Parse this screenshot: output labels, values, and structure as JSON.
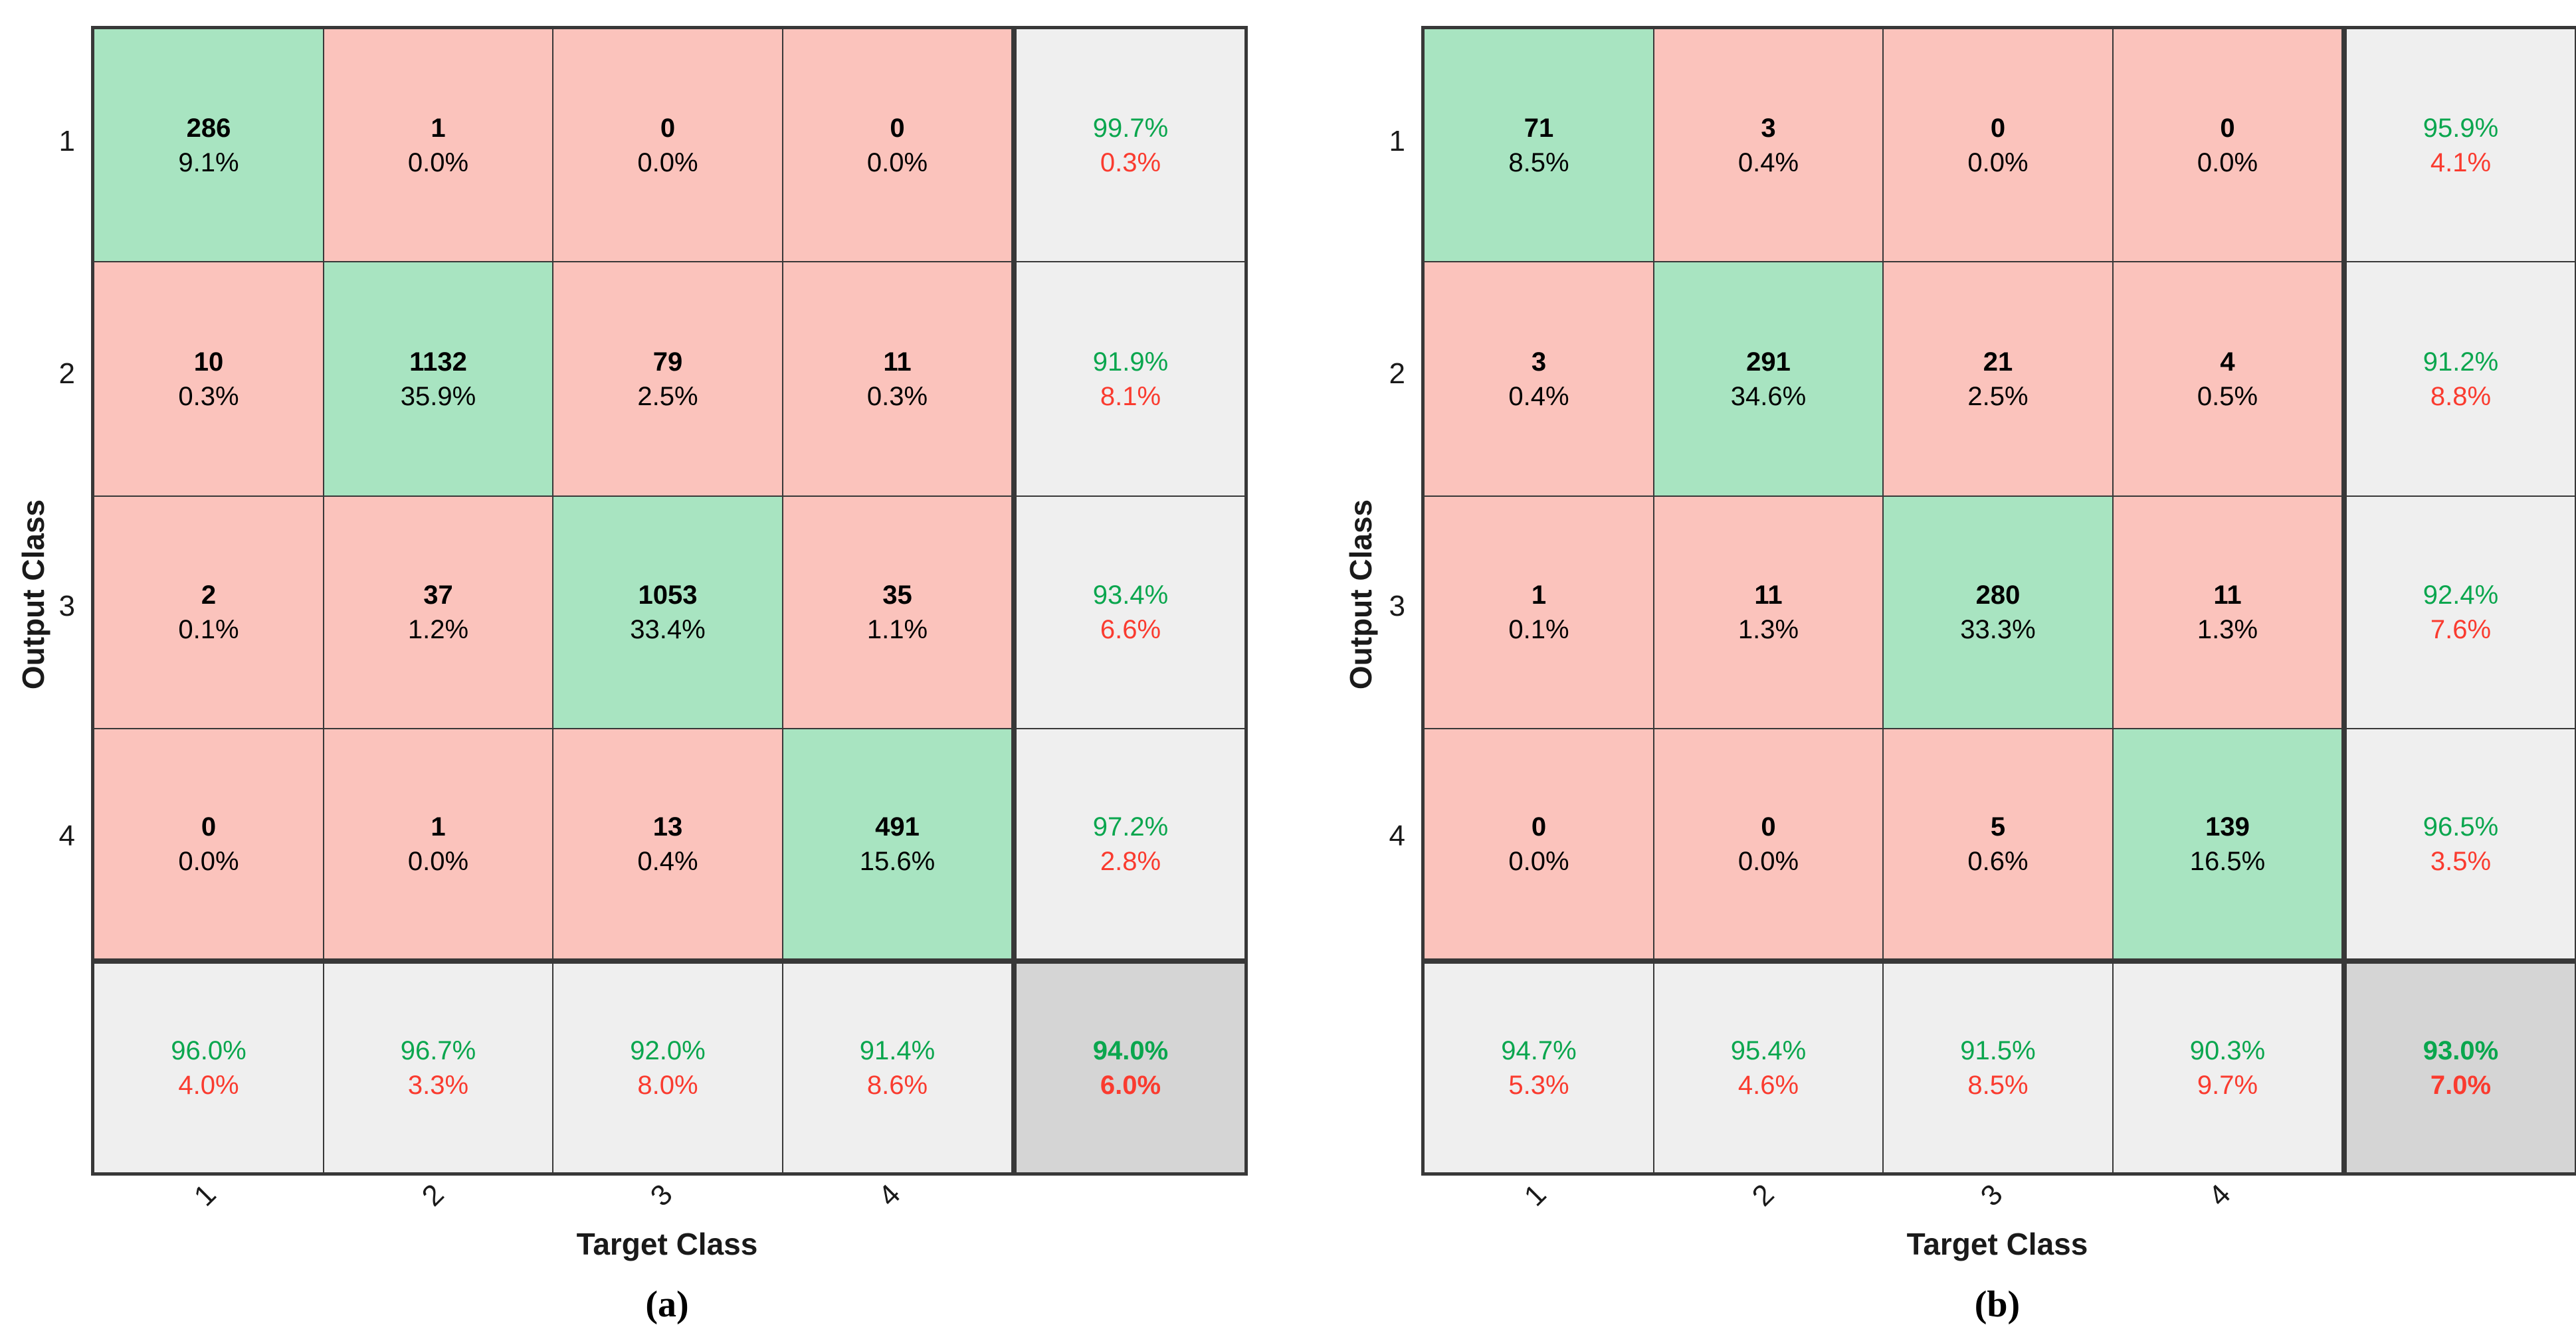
{
  "colors": {
    "green_cell": "#a8e4c1",
    "pink_cell": "#fbc3bc",
    "gray_cell": "#efefef",
    "dark_gray_cell": "#d5d5d5",
    "grid_line": "#383838",
    "green_text": "#0aa64e",
    "red_text": "#fa3b2f"
  },
  "chart_data": [
    {
      "type": "heatmap",
      "label": "(a)",
      "xlabel": "Target Class",
      "ylabel": "Output Class",
      "classes": [
        "1",
        "2",
        "3",
        "4"
      ],
      "counts": [
        [
          286,
          1,
          0,
          0
        ],
        [
          10,
          1132,
          79,
          11
        ],
        [
          2,
          37,
          1053,
          35
        ],
        [
          0,
          1,
          13,
          491
        ]
      ],
      "percents": [
        [
          "9.1%",
          "0.0%",
          "0.0%",
          "0.0%"
        ],
        [
          "0.3%",
          "35.9%",
          "2.5%",
          "0.3%"
        ],
        [
          "0.1%",
          "1.2%",
          "33.4%",
          "1.1%"
        ],
        [
          "0.0%",
          "0.0%",
          "0.4%",
          "15.6%"
        ]
      ],
      "row_summary": [
        {
          "green": "99.7%",
          "red": "0.3%"
        },
        {
          "green": "91.9%",
          "red": "8.1%"
        },
        {
          "green": "93.4%",
          "red": "6.6%"
        },
        {
          "green": "97.2%",
          "red": "2.8%"
        }
      ],
      "col_summary": [
        {
          "green": "96.0%",
          "red": "4.0%"
        },
        {
          "green": "96.7%",
          "red": "3.3%"
        },
        {
          "green": "92.0%",
          "red": "8.0%"
        },
        {
          "green": "91.4%",
          "red": "8.6%"
        }
      ],
      "total": {
        "green": "94.0%",
        "red": "6.0%"
      }
    },
    {
      "type": "heatmap",
      "label": "(b)",
      "xlabel": "Target Class",
      "ylabel": "Output Class",
      "classes": [
        "1",
        "2",
        "3",
        "4"
      ],
      "counts": [
        [
          71,
          3,
          0,
          0
        ],
        [
          3,
          291,
          21,
          4
        ],
        [
          1,
          11,
          280,
          11
        ],
        [
          0,
          0,
          5,
          139
        ]
      ],
      "percents": [
        [
          "8.5%",
          "0.4%",
          "0.0%",
          "0.0%"
        ],
        [
          "0.4%",
          "34.6%",
          "2.5%",
          "0.5%"
        ],
        [
          "0.1%",
          "1.3%",
          "33.3%",
          "1.3%"
        ],
        [
          "0.0%",
          "0.0%",
          "0.6%",
          "16.5%"
        ]
      ],
      "row_summary": [
        {
          "green": "95.9%",
          "red": "4.1%"
        },
        {
          "green": "91.2%",
          "red": "8.8%"
        },
        {
          "green": "92.4%",
          "red": "7.6%"
        },
        {
          "green": "96.5%",
          "red": "3.5%"
        }
      ],
      "col_summary": [
        {
          "green": "94.7%",
          "red": "5.3%"
        },
        {
          "green": "95.4%",
          "red": "4.6%"
        },
        {
          "green": "91.5%",
          "red": "8.5%"
        },
        {
          "green": "90.3%",
          "red": "9.7%"
        }
      ],
      "total": {
        "green": "93.0%",
        "red": "7.0%"
      }
    }
  ]
}
